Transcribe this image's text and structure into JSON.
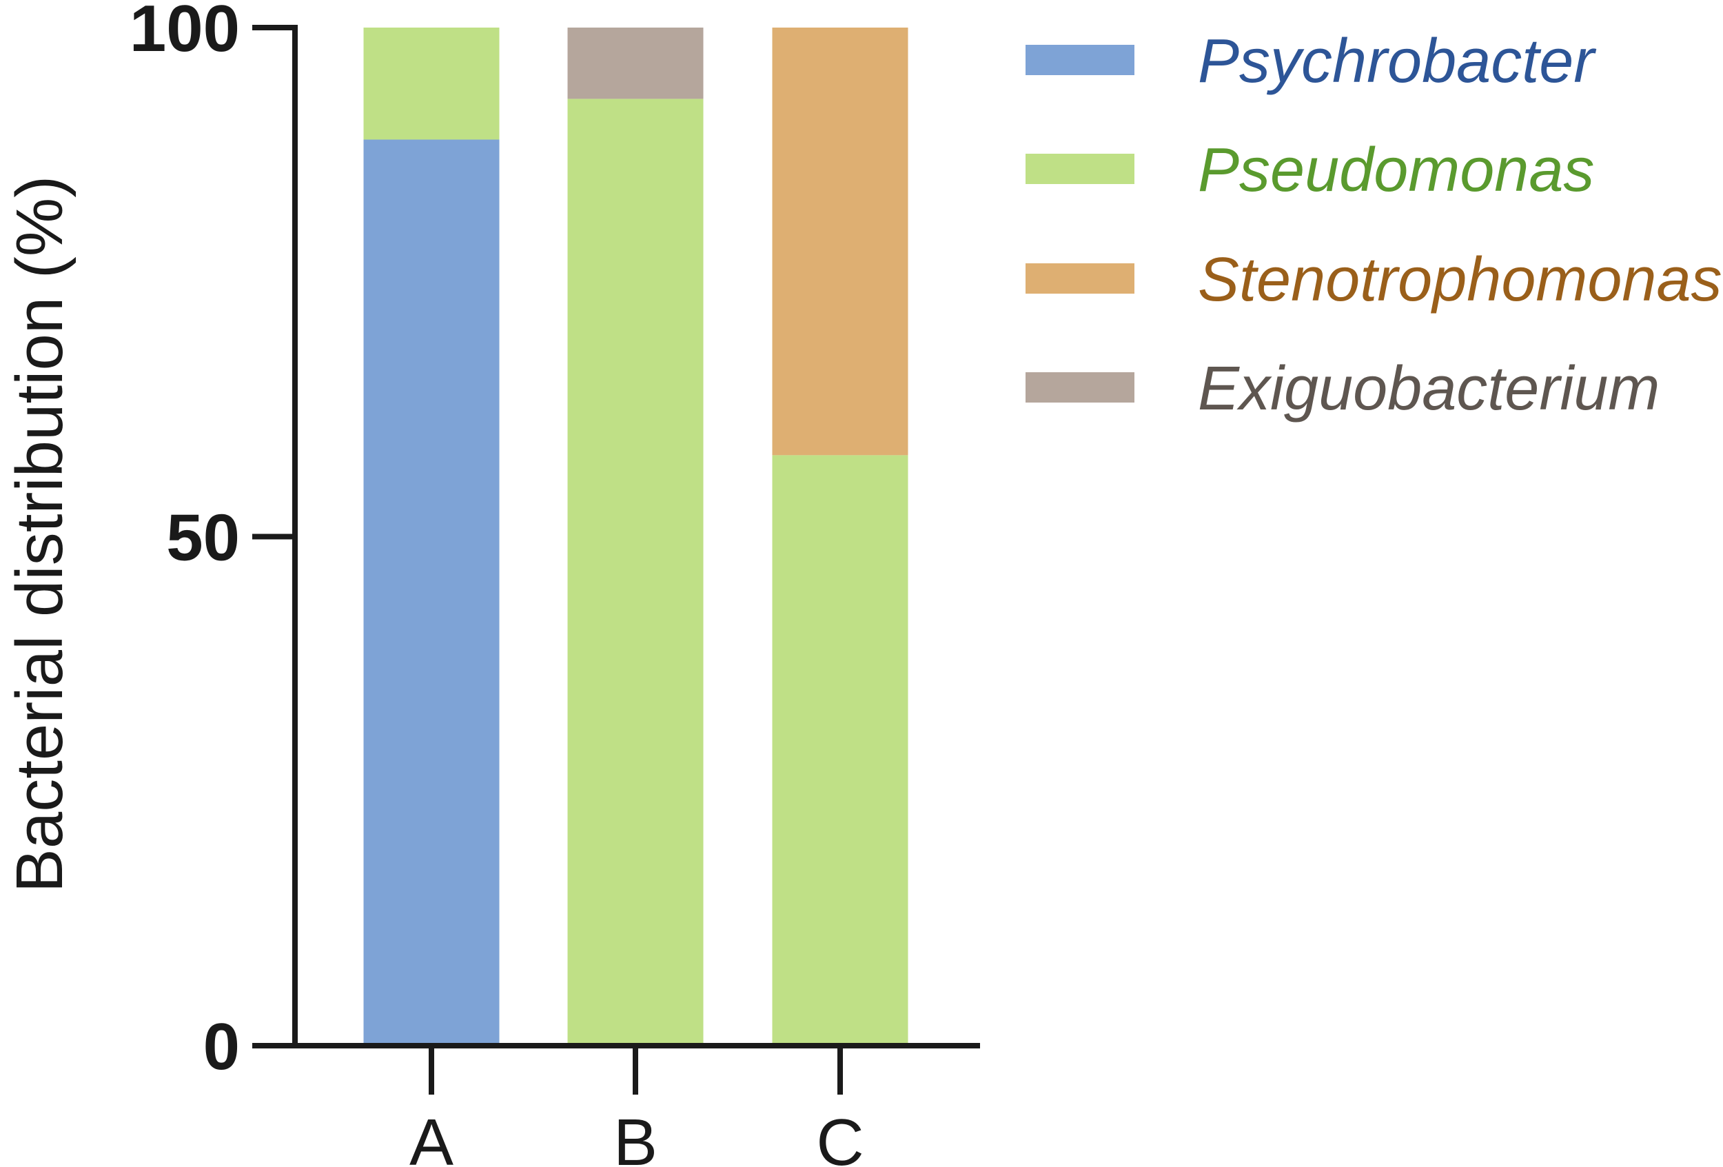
{
  "chart_data": {
    "type": "bar",
    "stacked": true,
    "title": "",
    "xlabel": "",
    "ylabel": "Bacterial distribution (%)",
    "ylim": [
      0,
      100
    ],
    "yticks": [
      "0",
      "50",
      "100"
    ],
    "categories": [
      "A",
      "B",
      "C"
    ],
    "series": [
      {
        "name": "Psychrobacter",
        "color": "#7ea3d6",
        "text_color": "#2d5597",
        "values": [
          89,
          0,
          0
        ]
      },
      {
        "name": "Pseudomonas",
        "color": "#bfe086",
        "text_color": "#5a9a2e",
        "values": [
          11,
          93,
          58
        ]
      },
      {
        "name": "Stenotrophomonas",
        "color": "#deaf72",
        "text_color": "#9a5f1a",
        "values": [
          0,
          0,
          42
        ]
      },
      {
        "name": "Exiguobacterium",
        "color": "#b5a69c",
        "text_color": "#5e5650",
        "values": [
          0,
          7,
          0
        ]
      }
    ],
    "legend_placement": "top-right",
    "grid": false
  }
}
